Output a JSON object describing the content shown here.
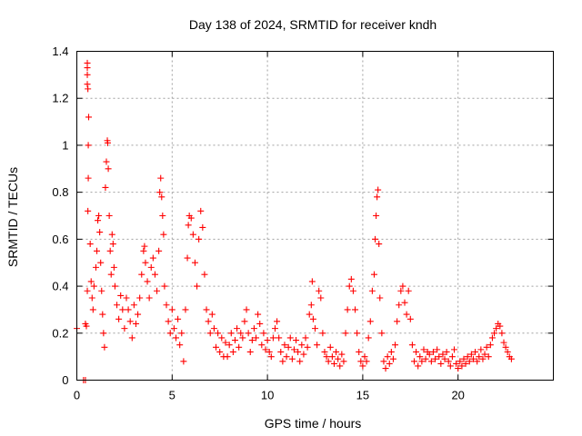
{
  "colors": {
    "series": "#ff0000",
    "background": "#ffffff",
    "grid": "#a0a0a0"
  },
  "chart_data": {
    "type": "scatter",
    "title": "Day 138 of 2024, SRMTID for receiver kndh",
    "xlabel": "GPS time / hours",
    "ylabel": "SRMTID / TECUs",
    "xlim": [
      0,
      25
    ],
    "ylim": [
      0,
      1.4
    ],
    "xticks": [
      0,
      5,
      10,
      15,
      20
    ],
    "xtick_labels": [
      "0",
      "5",
      "10",
      "15",
      "20"
    ],
    "yticks": [
      0,
      0.2,
      0.4,
      0.6,
      0.8,
      1.0,
      1.2,
      1.4
    ],
    "ytick_labels": [
      "0",
      "0.2",
      "0.4",
      "0.6",
      "0.8",
      "1",
      "1.2",
      "1.4"
    ],
    "grid": true,
    "marker": "plus",
    "series": [
      {
        "name": "SRMTID",
        "points": [
          [
            0.0,
            0.22
          ],
          [
            0.35,
            0.0
          ],
          [
            0.45,
            0.0
          ],
          [
            0.45,
            0.24
          ],
          [
            0.5,
            0.23
          ],
          [
            0.55,
            0.38
          ],
          [
            0.58,
            0.72
          ],
          [
            0.6,
            0.86
          ],
          [
            0.6,
            1.0
          ],
          [
            0.62,
            1.12
          ],
          [
            0.55,
            1.26
          ],
          [
            0.55,
            1.3
          ],
          [
            0.55,
            1.33
          ],
          [
            0.55,
            1.35
          ],
          [
            0.58,
            1.24
          ],
          [
            0.7,
            0.58
          ],
          [
            0.75,
            0.42
          ],
          [
            0.8,
            0.35
          ],
          [
            0.85,
            0.3
          ],
          [
            0.9,
            0.4
          ],
          [
            1.0,
            0.48
          ],
          [
            1.05,
            0.55
          ],
          [
            1.1,
            0.68
          ],
          [
            1.15,
            0.7
          ],
          [
            1.2,
            0.63
          ],
          [
            1.25,
            0.5
          ],
          [
            1.3,
            0.38
          ],
          [
            1.35,
            0.28
          ],
          [
            1.4,
            0.2
          ],
          [
            1.45,
            0.14
          ],
          [
            1.5,
            0.82
          ],
          [
            1.55,
            0.93
          ],
          [
            1.6,
            1.02
          ],
          [
            1.62,
            1.01
          ],
          [
            1.65,
            0.9
          ],
          [
            1.7,
            0.7
          ],
          [
            1.75,
            0.55
          ],
          [
            1.8,
            0.45
          ],
          [
            1.85,
            0.62
          ],
          [
            1.9,
            0.58
          ],
          [
            1.95,
            0.48
          ],
          [
            2.0,
            0.4
          ],
          [
            2.1,
            0.32
          ],
          [
            2.2,
            0.26
          ],
          [
            2.3,
            0.36
          ],
          [
            2.4,
            0.3
          ],
          [
            2.5,
            0.22
          ],
          [
            2.6,
            0.35
          ],
          [
            2.7,
            0.3
          ],
          [
            2.8,
            0.25
          ],
          [
            2.9,
            0.18
          ],
          [
            3.0,
            0.32
          ],
          [
            3.1,
            0.24
          ],
          [
            3.2,
            0.28
          ],
          [
            3.3,
            0.35
          ],
          [
            3.4,
            0.45
          ],
          [
            3.5,
            0.55
          ],
          [
            3.55,
            0.57
          ],
          [
            3.6,
            0.5
          ],
          [
            3.7,
            0.42
          ],
          [
            3.8,
            0.35
          ],
          [
            3.9,
            0.48
          ],
          [
            4.0,
            0.52
          ],
          [
            4.1,
            0.45
          ],
          [
            4.2,
            0.38
          ],
          [
            4.3,
            0.55
          ],
          [
            4.35,
            0.8
          ],
          [
            4.4,
            0.86
          ],
          [
            4.45,
            0.78
          ],
          [
            4.5,
            0.7
          ],
          [
            4.55,
            0.62
          ],
          [
            4.6,
            0.4
          ],
          [
            4.7,
            0.32
          ],
          [
            4.8,
            0.25
          ],
          [
            4.9,
            0.2
          ],
          [
            5.0,
            0.3
          ],
          [
            5.1,
            0.22
          ],
          [
            5.2,
            0.18
          ],
          [
            5.3,
            0.26
          ],
          [
            5.4,
            0.15
          ],
          [
            5.5,
            0.2
          ],
          [
            5.6,
            0.08
          ],
          [
            5.7,
            0.3
          ],
          [
            5.8,
            0.52
          ],
          [
            5.85,
            0.66
          ],
          [
            5.9,
            0.7
          ],
          [
            6.0,
            0.69
          ],
          [
            6.1,
            0.62
          ],
          [
            6.2,
            0.5
          ],
          [
            6.3,
            0.4
          ],
          [
            6.4,
            0.6
          ],
          [
            6.5,
            0.72
          ],
          [
            6.6,
            0.65
          ],
          [
            6.7,
            0.45
          ],
          [
            6.8,
            0.3
          ],
          [
            6.9,
            0.25
          ],
          [
            7.0,
            0.2
          ],
          [
            7.1,
            0.28
          ],
          [
            7.2,
            0.22
          ],
          [
            7.3,
            0.14
          ],
          [
            7.4,
            0.2
          ],
          [
            7.5,
            0.12
          ],
          [
            7.6,
            0.18
          ],
          [
            7.7,
            0.1
          ],
          [
            7.8,
            0.16
          ],
          [
            7.9,
            0.1
          ],
          [
            8.0,
            0.15
          ],
          [
            8.1,
            0.2
          ],
          [
            8.2,
            0.12
          ],
          [
            8.3,
            0.17
          ],
          [
            8.4,
            0.22
          ],
          [
            8.5,
            0.14
          ],
          [
            8.6,
            0.2
          ],
          [
            8.7,
            0.18
          ],
          [
            8.8,
            0.25
          ],
          [
            8.9,
            0.3
          ],
          [
            9.0,
            0.2
          ],
          [
            9.1,
            0.12
          ],
          [
            9.2,
            0.17
          ],
          [
            9.3,
            0.22
          ],
          [
            9.4,
            0.18
          ],
          [
            9.5,
            0.28
          ],
          [
            9.6,
            0.24
          ],
          [
            9.7,
            0.15
          ],
          [
            9.8,
            0.2
          ],
          [
            9.9,
            0.13
          ],
          [
            10.0,
            0.17
          ],
          [
            10.1,
            0.12
          ],
          [
            10.2,
            0.1
          ],
          [
            10.3,
            0.18
          ],
          [
            10.4,
            0.22
          ],
          [
            10.5,
            0.25
          ],
          [
            10.6,
            0.18
          ],
          [
            10.7,
            0.12
          ],
          [
            10.8,
            0.08
          ],
          [
            10.9,
            0.15
          ],
          [
            11.0,
            0.1
          ],
          [
            11.1,
            0.14
          ],
          [
            11.2,
            0.18
          ],
          [
            11.3,
            0.09
          ],
          [
            11.4,
            0.13
          ],
          [
            11.5,
            0.17
          ],
          [
            11.6,
            0.12
          ],
          [
            11.7,
            0.08
          ],
          [
            11.8,
            0.15
          ],
          [
            11.9,
            0.11
          ],
          [
            12.0,
            0.18
          ],
          [
            12.1,
            0.14
          ],
          [
            12.2,
            0.28
          ],
          [
            12.3,
            0.32
          ],
          [
            12.35,
            0.42
          ],
          [
            12.4,
            0.26
          ],
          [
            12.5,
            0.22
          ],
          [
            12.6,
            0.15
          ],
          [
            12.7,
            0.38
          ],
          [
            12.8,
            0.35
          ],
          [
            12.9,
            0.2
          ],
          [
            13.0,
            0.12
          ],
          [
            13.1,
            0.1
          ],
          [
            13.2,
            0.08
          ],
          [
            13.3,
            0.14
          ],
          [
            13.4,
            0.1
          ],
          [
            13.5,
            0.07
          ],
          [
            13.6,
            0.12
          ],
          [
            13.7,
            0.09
          ],
          [
            13.8,
            0.06
          ],
          [
            13.9,
            0.11
          ],
          [
            14.0,
            0.08
          ],
          [
            14.1,
            0.2
          ],
          [
            14.2,
            0.3
          ],
          [
            14.3,
            0.4
          ],
          [
            14.4,
            0.43
          ],
          [
            14.5,
            0.38
          ],
          [
            14.6,
            0.3
          ],
          [
            14.7,
            0.2
          ],
          [
            14.8,
            0.12
          ],
          [
            14.9,
            0.08
          ],
          [
            15.0,
            0.06
          ],
          [
            15.1,
            0.1
          ],
          [
            15.2,
            0.08
          ],
          [
            15.3,
            0.18
          ],
          [
            15.4,
            0.25
          ],
          [
            15.5,
            0.38
          ],
          [
            15.6,
            0.45
          ],
          [
            15.65,
            0.6
          ],
          [
            15.7,
            0.7
          ],
          [
            15.75,
            0.78
          ],
          [
            15.8,
            0.81
          ],
          [
            15.85,
            0.58
          ],
          [
            15.9,
            0.35
          ],
          [
            16.0,
            0.2
          ],
          [
            16.1,
            0.08
          ],
          [
            16.2,
            0.05
          ],
          [
            16.3,
            0.1
          ],
          [
            16.4,
            0.07
          ],
          [
            16.5,
            0.12
          ],
          [
            16.6,
            0.09
          ],
          [
            16.7,
            0.15
          ],
          [
            16.8,
            0.25
          ],
          [
            16.9,
            0.32
          ],
          [
            17.0,
            0.38
          ],
          [
            17.1,
            0.4
          ],
          [
            17.2,
            0.33
          ],
          [
            17.3,
            0.28
          ],
          [
            17.4,
            0.38
          ],
          [
            17.5,
            0.26
          ],
          [
            17.6,
            0.15
          ],
          [
            17.7,
            0.08
          ],
          [
            17.8,
            0.12
          ],
          [
            17.9,
            0.06
          ],
          [
            18.0,
            0.1
          ],
          [
            18.1,
            0.08
          ],
          [
            18.2,
            0.13
          ],
          [
            18.3,
            0.09
          ],
          [
            18.4,
            0.12
          ],
          [
            18.5,
            0.11
          ],
          [
            18.6,
            0.08
          ],
          [
            18.7,
            0.12
          ],
          [
            18.8,
            0.09
          ],
          [
            18.9,
            0.13
          ],
          [
            19.0,
            0.1
          ],
          [
            19.1,
            0.07
          ],
          [
            19.2,
            0.11
          ],
          [
            19.3,
            0.09
          ],
          [
            19.4,
            0.12
          ],
          [
            19.5,
            0.08
          ],
          [
            19.6,
            0.06
          ],
          [
            19.7,
            0.1
          ],
          [
            19.8,
            0.13
          ],
          [
            19.9,
            0.07
          ],
          [
            20.0,
            0.05
          ],
          [
            20.1,
            0.08
          ],
          [
            20.2,
            0.06
          ],
          [
            20.3,
            0.09
          ],
          [
            20.4,
            0.07
          ],
          [
            20.5,
            0.1
          ],
          [
            20.6,
            0.08
          ],
          [
            20.7,
            0.11
          ],
          [
            20.8,
            0.09
          ],
          [
            20.9,
            0.12
          ],
          [
            21.0,
            0.08
          ],
          [
            21.1,
            0.1
          ],
          [
            21.2,
            0.13
          ],
          [
            21.3,
            0.09
          ],
          [
            21.4,
            0.11
          ],
          [
            21.5,
            0.14
          ],
          [
            21.6,
            0.1
          ],
          [
            21.7,
            0.15
          ],
          [
            21.8,
            0.18
          ],
          [
            21.9,
            0.2
          ],
          [
            22.0,
            0.22
          ],
          [
            22.1,
            0.24
          ],
          [
            22.2,
            0.23
          ],
          [
            22.3,
            0.2
          ],
          [
            22.4,
            0.16
          ],
          [
            22.5,
            0.14
          ],
          [
            22.6,
            0.12
          ],
          [
            22.7,
            0.1
          ],
          [
            22.8,
            0.09
          ]
        ]
      }
    ]
  }
}
